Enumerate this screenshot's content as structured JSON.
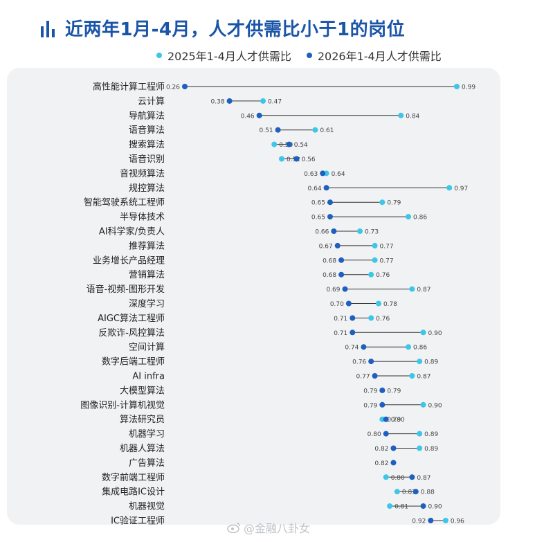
{
  "title": "近两年1月-4月，人才供需比小于1的岗位",
  "watermark": "@金融八卦女",
  "colors": {
    "title": "#1b55a8",
    "series_2025": "#3ec6e8",
    "series_2026": "#1e5fbf",
    "connector": "#333333",
    "panel": "#f1f2f4"
  },
  "chart_data": {
    "type": "dumbbell",
    "title": "近两年1月-4月，人才供需比小于1的岗位",
    "legend_position": "top",
    "series": [
      {
        "name": "2025年1-4月人才供需比",
        "color": "#3ec6e8",
        "values": [
          0.99,
          0.47,
          0.84,
          0.61,
          0.5,
          0.52,
          0.64,
          0.97,
          0.79,
          0.86,
          0.73,
          0.77,
          0.77,
          0.76,
          0.87,
          0.78,
          0.76,
          0.9,
          0.86,
          0.89,
          0.87,
          0.79,
          0.9,
          0.79,
          0.89,
          0.89,
          null,
          0.8,
          0.83,
          0.81,
          0.96
        ]
      },
      {
        "name": "2026年1-4月人才供需比",
        "color": "#1e5fbf",
        "values": [
          0.26,
          0.38,
          0.46,
          0.51,
          0.54,
          0.56,
          0.63,
          0.64,
          0.65,
          0.65,
          0.66,
          0.67,
          0.68,
          0.68,
          0.69,
          0.7,
          0.71,
          0.71,
          0.74,
          0.76,
          0.77,
          0.79,
          0.79,
          0.8,
          0.8,
          0.82,
          0.82,
          0.87,
          0.88,
          0.9,
          0.92
        ]
      }
    ],
    "categories": [
      "高性能计算工程师",
      "云计算",
      "导航算法",
      "语音算法",
      "搜索算法",
      "语音识别",
      "音视频算法",
      "规控算法",
      "智能驾驶系统工程师",
      "半导体技术",
      "AI科学家/负责人",
      "推荐算法",
      "业务增长产品经理",
      "营销算法",
      "语音-视频-图形开发",
      "深度学习",
      "AIGC算法工程师",
      "反欺诈-风控算法",
      "空间计算",
      "数字后端工程师",
      "AI infra",
      "大模型算法",
      "图像识别-计算机视觉",
      "算法研究员",
      "机器学习",
      "机器人算法",
      "广告算法",
      "数字前端工程师",
      "集成电路IC设计",
      "机器视觉",
      "IC验证工程师"
    ],
    "labels_2025": [
      "0.99",
      "0.47",
      "0.84",
      "0.61",
      "0.50",
      "0.52",
      "0.64",
      "0.97",
      "0.79",
      "0.86",
      "0.73",
      "0.77",
      "0.77",
      "0.76",
      "0.87",
      "0.78",
      "0.76",
      "0.90",
      "0.86",
      "0.89",
      "0.87",
      "0.79",
      "0.90",
      "0.79",
      "0.89",
      "0.89",
      "",
      "0.80",
      "0.83",
      "0.81",
      "0.96"
    ],
    "labels_2026": [
      "0.26",
      "0.38",
      "0.46",
      "0.51",
      "0.54",
      "0.56",
      "0.63",
      "0.64",
      "0.65",
      "0.65",
      "0.66",
      "0.67",
      "0.68",
      "0.68",
      "0.69",
      "0.70",
      "0.71",
      "0.71",
      "0.74",
      "0.76",
      "0.77",
      "0.79",
      "0.79",
      "0.80",
      "0.80",
      "0.82",
      "0.82",
      "0.87",
      "0.88",
      "0.90",
      "0.92"
    ],
    "xlim": [
      0.26,
      0.99
    ],
    "grid": false
  }
}
